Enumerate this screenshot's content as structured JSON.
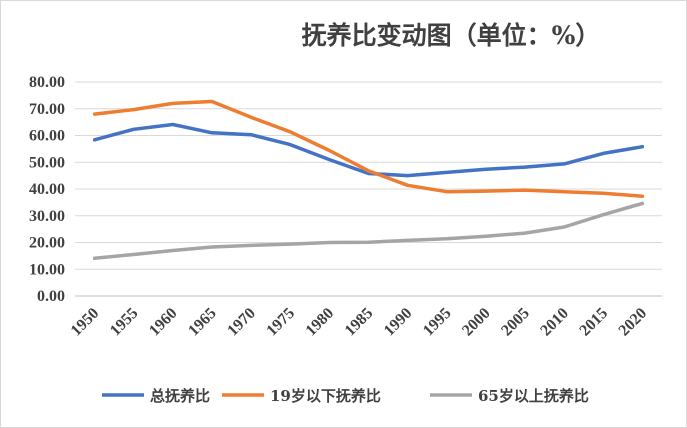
{
  "chart_data": {
    "type": "line",
    "title": "抚养比变动图（单位：%）",
    "xlabel": "",
    "ylabel": "",
    "ylim": [
      0,
      80
    ],
    "yticks": [
      "0.00",
      "10.00",
      "20.00",
      "30.00",
      "40.00",
      "50.00",
      "60.00",
      "70.00",
      "80.00"
    ],
    "categories": [
      "1950",
      "1955",
      "1960",
      "1965",
      "1970",
      "1975",
      "1980",
      "1985",
      "1990",
      "1995",
      "2000",
      "2005",
      "2010",
      "2015",
      "2020"
    ],
    "grid": true,
    "legend_position": "bottom",
    "series": [
      {
        "name": "总抚养比",
        "color": "#4472c4",
        "values": [
          58.4,
          62.3,
          64.1,
          61.0,
          60.3,
          56.6,
          51.0,
          45.8,
          45.0,
          46.2,
          47.4,
          48.2,
          49.4,
          53.3,
          55.8
        ]
      },
      {
        "name": "19岁以下抚养比",
        "color": "#ed7d31",
        "values": [
          68.0,
          69.7,
          72.0,
          72.7,
          66.8,
          61.4,
          54.4,
          46.8,
          41.4,
          39.0,
          39.2,
          39.6,
          39.0,
          38.4,
          37.3
        ]
      },
      {
        "name": "65岁以上抚养比",
        "color": "#a5a5a5",
        "values": [
          14.1,
          15.5,
          17.0,
          18.3,
          18.9,
          19.4,
          20.0,
          20.1,
          20.8,
          21.4,
          22.3,
          23.5,
          25.8,
          30.4,
          34.6
        ]
      }
    ]
  }
}
